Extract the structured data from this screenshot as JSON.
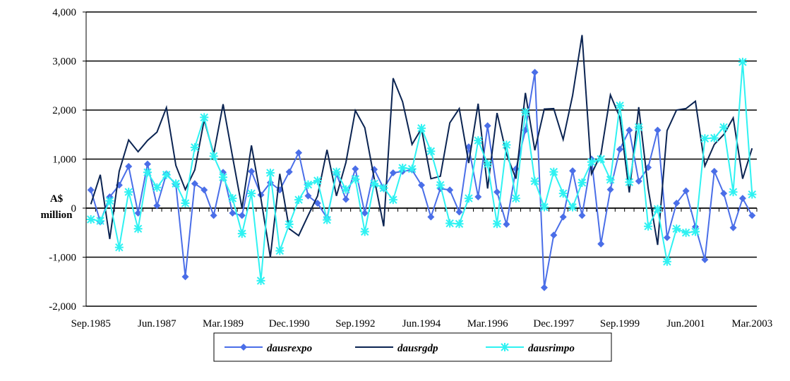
{
  "chart_data": {
    "type": "line",
    "ylabel": [
      "A$",
      "million"
    ],
    "categories": [
      "Sep.1985",
      null,
      null,
      null,
      null,
      null,
      null,
      "Jun.1987",
      null,
      null,
      null,
      null,
      null,
      null,
      "Mar.1989",
      null,
      null,
      null,
      null,
      null,
      null,
      "Dec.1990",
      null,
      null,
      null,
      null,
      null,
      null,
      "Sep.1992",
      null,
      null,
      null,
      null,
      null,
      null,
      "Jun.1994",
      null,
      null,
      null,
      null,
      null,
      null,
      "Mar.1996",
      null,
      null,
      null,
      null,
      null,
      null,
      "Dec.1997",
      null,
      null,
      null,
      null,
      null,
      null,
      "Sep.1999",
      null,
      null,
      null,
      null,
      null,
      null,
      "Jun.2001",
      null,
      null,
      null,
      null,
      null,
      null,
      "Mar.2003"
    ],
    "series": [
      {
        "name": "dausrexpo",
        "color": "#4a6ee8",
        "marker": "diamond",
        "values": [
          370,
          -280,
          230,
          470,
          850,
          -100,
          900,
          50,
          700,
          480,
          -1400,
          500,
          370,
          -150,
          730,
          -100,
          -150,
          750,
          270,
          520,
          370,
          740,
          1130,
          250,
          100,
          -200,
          700,
          180,
          800,
          -100,
          790,
          400,
          720,
          750,
          780,
          470,
          -180,
          400,
          370,
          -80,
          1250,
          230,
          1680,
          330,
          -330,
          800,
          1590,
          2770,
          -1620,
          -550,
          -180,
          760,
          -150,
          1000,
          -730,
          380,
          1200,
          1590,
          550,
          830,
          1590,
          -600,
          100,
          350,
          -380,
          -1050,
          750,
          300,
          -400,
          200,
          -150
        ]
      },
      {
        "name": "dausrgdp",
        "color": "#0b2452",
        "marker": "none",
        "values": [
          80,
          680,
          -630,
          750,
          1390,
          1150,
          1380,
          1550,
          2050,
          870,
          380,
          780,
          1800,
          1100,
          2120,
          1050,
          0,
          1280,
          200,
          -1000,
          700,
          -420,
          -560,
          -150,
          250,
          1190,
          250,
          930,
          1990,
          1640,
          600,
          -370,
          2650,
          2170,
          1300,
          1620,
          600,
          650,
          1740,
          2030,
          920,
          2130,
          400,
          1940,
          1100,
          600,
          2350,
          1180,
          2020,
          2030,
          1400,
          2300,
          3530,
          700,
          1100,
          2310,
          1850,
          320,
          2060,
          400,
          -750,
          1580,
          2000,
          2030,
          2180,
          860,
          1300,
          1500,
          1840,
          600,
          1220
        ]
      },
      {
        "name": "dausrimpo",
        "color": "#2ff2f2",
        "marker": "star",
        "values": [
          -230,
          -260,
          150,
          -800,
          330,
          -420,
          730,
          420,
          680,
          500,
          100,
          1240,
          1850,
          1060,
          630,
          200,
          -520,
          300,
          -1480,
          720,
          -870,
          -330,
          170,
          480,
          560,
          -240,
          740,
          380,
          590,
          -480,
          500,
          410,
          170,
          820,
          800,
          1630,
          1160,
          470,
          -310,
          -320,
          200,
          1380,
          900,
          -320,
          1290,
          200,
          1960,
          550,
          20,
          740,
          300,
          20,
          520,
          940,
          1000,
          580,
          2090,
          530,
          1650,
          -370,
          -20,
          -1090,
          -420,
          -500,
          -480,
          1420,
          1430,
          1650,
          330,
          2980,
          280
        ]
      }
    ],
    "ylim": [
      -2000,
      4000
    ],
    "yticks": [
      {
        "value": -2000,
        "label": "-2,000"
      },
      {
        "value": -1000,
        "label": "-1,000"
      },
      0,
      {
        "value": 1000,
        "label": "1,000"
      },
      {
        "value": 2000,
        "label": "2,000"
      },
      {
        "value": 3000,
        "label": "3,000"
      },
      {
        "value": 4000,
        "label": "4,000"
      }
    ],
    "grid": true
  }
}
